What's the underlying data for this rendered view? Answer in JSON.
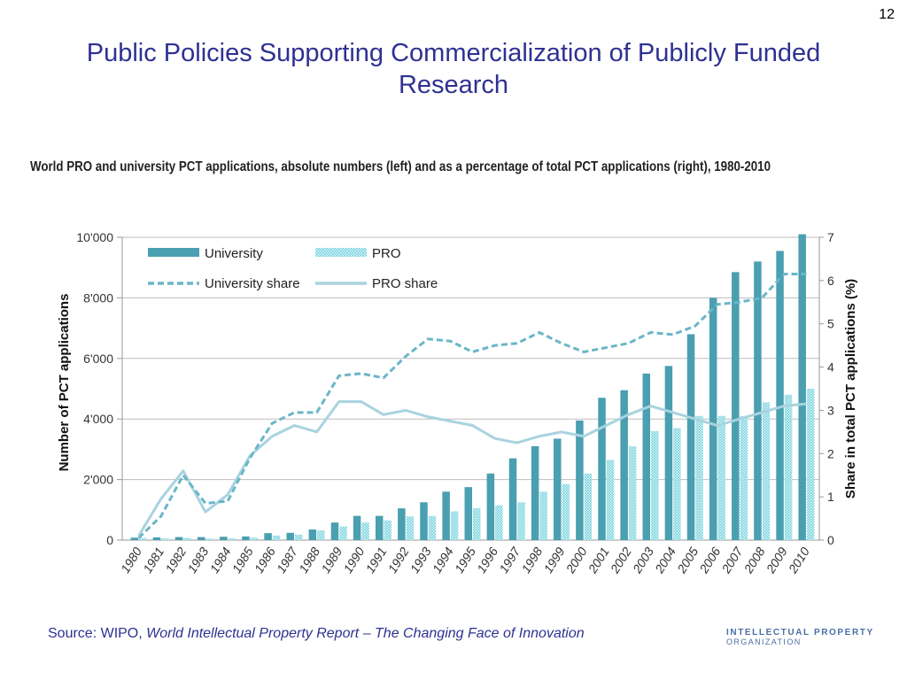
{
  "slide": {
    "number": "12",
    "title": "Public Policies Supporting Commercialization of Publicly Funded Research",
    "source_prefix": "Source: WIPO, ",
    "source_italic": "World Intellectual Property Report – The Changing Face of Innovation",
    "logo_line1": "INTELLECTUAL PROPERTY",
    "logo_line2": "ORGANIZATION"
  },
  "chart_data": {
    "type": "bar",
    "title": "World PRO and university PCT applications, absolute numbers (left) and as a percentage of total PCT applications (right), 1980-2010",
    "ylabel": "Number of PCT applications",
    "y2label": "Share in total PCT applications (%)",
    "ylim": [
      0,
      10000
    ],
    "y2lim": [
      0,
      7
    ],
    "yticks": [
      "0",
      "2'000",
      "4'000",
      "6'000",
      "8'000",
      "10'000"
    ],
    "y2ticks": [
      "0",
      "1",
      "2",
      "3",
      "4",
      "5",
      "6",
      "7"
    ],
    "legend_position": "top-left",
    "categories": [
      "1980",
      "1981",
      "1982",
      "1983",
      "1984",
      "1985",
      "1986",
      "1987",
      "1988",
      "1989",
      "1990",
      "1991",
      "1992",
      "1993",
      "1994",
      "1995",
      "1996",
      "1997",
      "1998",
      "1999",
      "2000",
      "2001",
      "2002",
      "2003",
      "2004",
      "2005",
      "2006",
      "2007",
      "2008",
      "2009",
      "2010"
    ],
    "series": [
      {
        "name": "University",
        "kind": "bar",
        "axis": "left",
        "color": "#4a9fb0",
        "values": [
          80,
          90,
          100,
          100,
          110,
          120,
          230,
          240,
          350,
          580,
          800,
          800,
          1050,
          1250,
          1600,
          1750,
          2200,
          2700,
          3100,
          3350,
          3950,
          4700,
          4950,
          5500,
          5750,
          6800,
          8000,
          8850,
          9200,
          9550,
          10100
        ]
      },
      {
        "name": "PRO",
        "kind": "bar",
        "axis": "left",
        "color": "#6fd0dc",
        "values": [
          70,
          60,
          70,
          50,
          60,
          80,
          150,
          180,
          320,
          450,
          580,
          650,
          780,
          800,
          950,
          1050,
          1150,
          1250,
          1600,
          1850,
          2200,
          2650,
          3100,
          3600,
          3700,
          4100,
          4100,
          4100,
          4550,
          4800,
          5000
        ]
      },
      {
        "name": "University share",
        "kind": "line",
        "axis": "right",
        "style": "dashed",
        "color": "#6ab6c8",
        "values": [
          0.05,
          0.55,
          1.5,
          0.85,
          0.9,
          1.9,
          2.7,
          2.95,
          2.95,
          3.8,
          3.85,
          3.75,
          4.25,
          4.65,
          4.6,
          4.35,
          4.5,
          4.55,
          4.8,
          4.55,
          4.35,
          4.45,
          4.55,
          4.8,
          4.75,
          4.95,
          5.45,
          5.5,
          5.6,
          6.15,
          6.15
        ]
      },
      {
        "name": "PRO share",
        "kind": "line",
        "axis": "right",
        "style": "solid",
        "color": "#a9d3df",
        "values": [
          0.1,
          0.95,
          1.6,
          0.65,
          1.05,
          1.95,
          2.4,
          2.65,
          2.5,
          3.2,
          3.2,
          2.9,
          3.0,
          2.85,
          2.75,
          2.65,
          2.35,
          2.25,
          2.4,
          2.5,
          2.4,
          2.65,
          2.9,
          3.1,
          2.95,
          2.8,
          2.65,
          2.8,
          2.95,
          3.1,
          3.15
        ]
      }
    ]
  }
}
